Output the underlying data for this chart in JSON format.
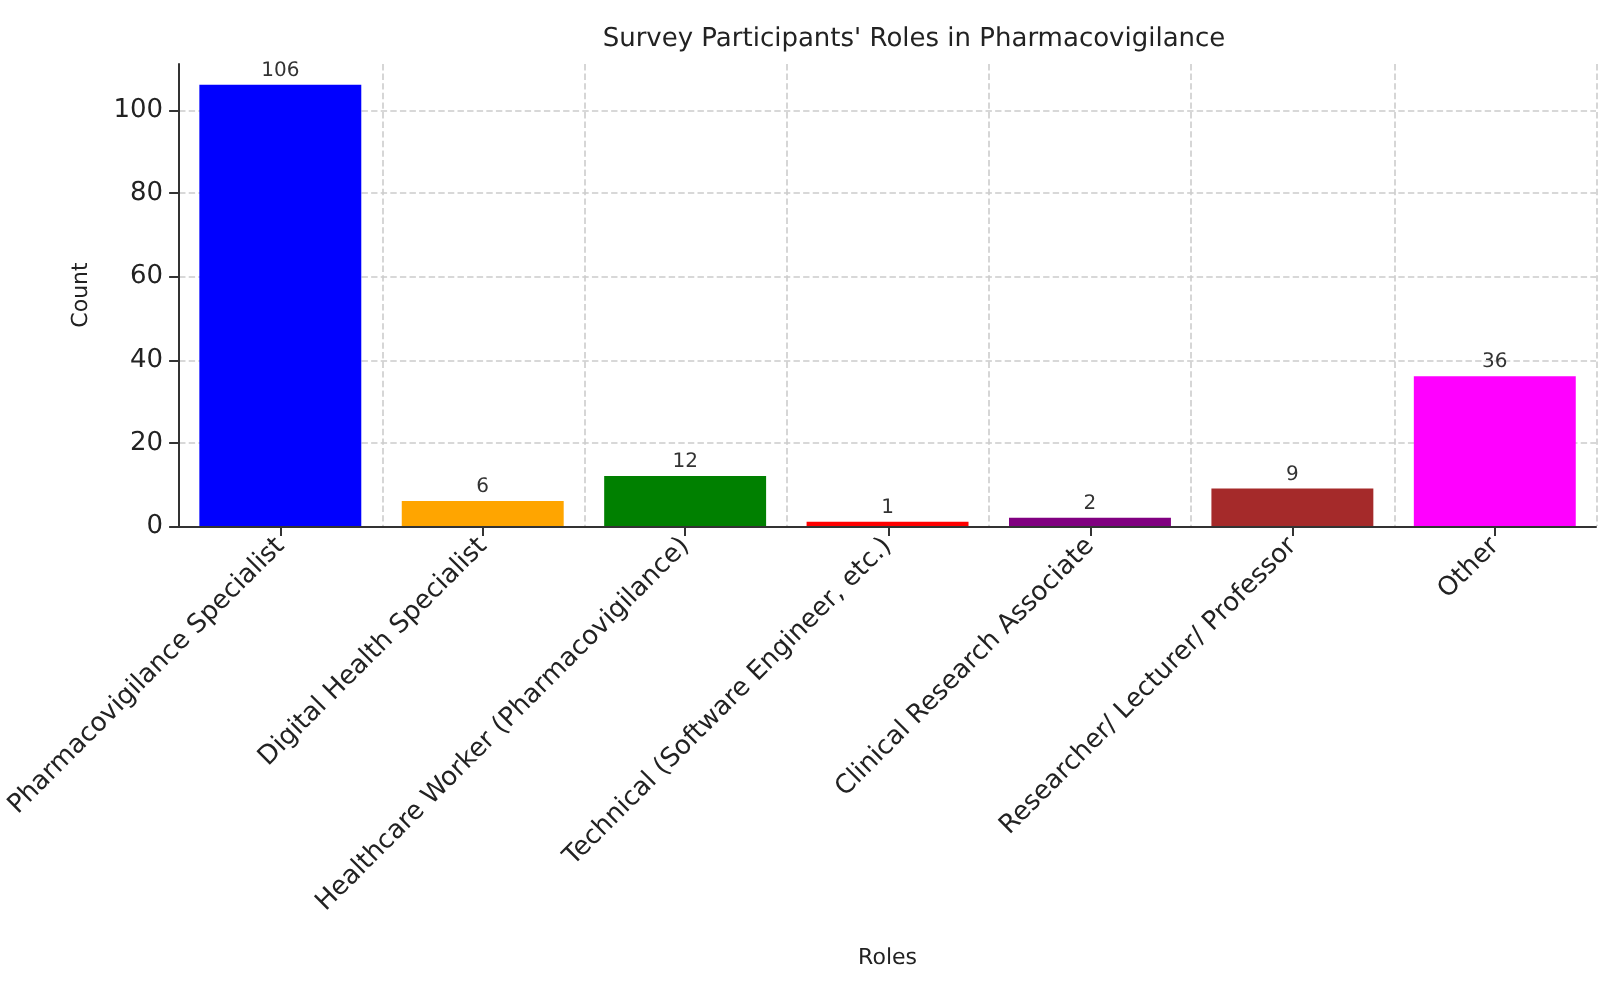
{
  "chart_data": {
    "type": "bar",
    "title": "Survey Participants' Roles in Pharmacovigilance",
    "xlabel": "Roles",
    "ylabel": "Count",
    "categories": [
      "Pharmacovigilance Specialist",
      "Digital Health Specialist",
      "Healthcare Worker (Pharmacovigilance)",
      "Technical (Software Engineer, etc.)",
      "Clinical Research Associate",
      "Researcher/ Lecturer/ Professor",
      "Other"
    ],
    "values": [
      106,
      6,
      12,
      1,
      2,
      9,
      36
    ],
    "colors": [
      "#0000ff",
      "#ffa500",
      "#008000",
      "#ff0000",
      "#800080",
      "#a52a2a",
      "#ff00ff"
    ],
    "ylim": [
      0,
      111
    ],
    "yticks": [
      0,
      20,
      40,
      60,
      80,
      100
    ],
    "grid": true,
    "data_labels": true
  }
}
